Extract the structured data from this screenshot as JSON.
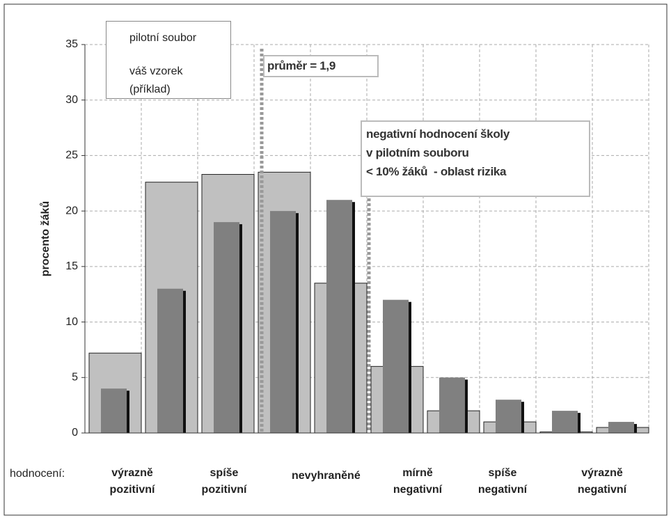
{
  "chart_data": {
    "type": "bar",
    "y_label": "procento žáků",
    "x_label": "hodnocení:",
    "categories": [
      "výrazně pozitivní",
      null,
      "spíše pozitivní",
      null,
      "nevyhraněné",
      "mírně negativní",
      null,
      "spíše negativní",
      null,
      "výrazně negativní"
    ],
    "series": [
      {
        "name": "pilotní soubor",
        "color": "#c0c0c0",
        "values": [
          7.2,
          22.6,
          23.3,
          23.5,
          13.5,
          6,
          2,
          1,
          0.1,
          0.5
        ]
      },
      {
        "name": "váš vzorek (příklad)",
        "color": "#808080",
        "values": [
          4,
          13,
          19,
          20,
          21,
          12,
          5,
          3,
          2,
          1
        ]
      }
    ],
    "ylim": [
      0,
      35
    ],
    "yticks": [
      0,
      5,
      10,
      15,
      20,
      25,
      30,
      35
    ],
    "grid": true,
    "legend": "top-left",
    "mean_note": "průměr = 1,9",
    "risk_note": [
      "negativní hodnocení školy",
      "v pilotním souboru",
      "< 10% žáků  - oblast rizika"
    ]
  }
}
